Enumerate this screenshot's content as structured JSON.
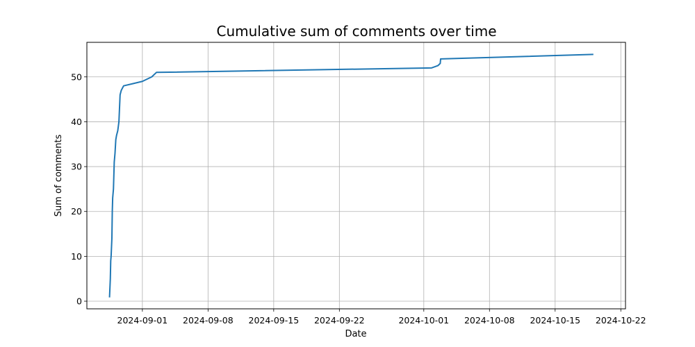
{
  "chart_data": {
    "type": "line",
    "title": "Cumulative sum of comments over time",
    "xlabel": "Date",
    "ylabel": "Sum of comments",
    "grid": true,
    "x_ticks": [
      "2024-09-01",
      "2024-09-08",
      "2024-09-15",
      "2024-09-22",
      "2024-10-01",
      "2024-10-08",
      "2024-10-15",
      "2024-10-22"
    ],
    "y_ticks": [
      0,
      10,
      20,
      30,
      40,
      50
    ],
    "xlim": [
      "2024-08-26T02:00",
      "2024-10-22T12:00"
    ],
    "ylim": [
      -1.7,
      57.7
    ],
    "line_color": "#1f77b4",
    "series": [
      {
        "x": [
          "2024-08-28T12:00",
          "2024-08-28T13:00",
          "2024-08-28T14:00",
          "2024-08-28T15:00",
          "2024-08-28T16:00",
          "2024-08-28T17:00",
          "2024-08-28T18:00",
          "2024-08-28T19:00",
          "2024-08-28T20:00",
          "2024-08-28T22:00",
          "2024-08-29T00:00",
          "2024-08-29T02:00",
          "2024-08-29T04:00",
          "2024-08-29T06:00",
          "2024-08-29T09:00",
          "2024-08-29T12:00",
          "2024-08-29T15:00",
          "2024-08-29T18:00",
          "2024-08-30T00:00",
          "2024-08-31T00:00",
          "2024-09-01T00:00",
          "2024-09-01T12:00",
          "2024-09-02T00:00",
          "2024-09-02T12:00",
          "2024-10-01T20:00",
          "2024-10-02T12:00",
          "2024-10-02T18:00",
          "2024-10-02T19:00",
          "2024-10-19T00:00"
        ],
        "values": [
          1,
          3,
          5,
          9,
          10,
          12,
          14,
          20,
          23,
          25,
          31,
          33,
          36,
          37,
          38,
          40,
          46,
          47,
          48,
          48.5,
          49,
          49.5,
          50,
          51,
          52,
          52.5,
          53,
          54,
          55
        ]
      }
    ]
  }
}
